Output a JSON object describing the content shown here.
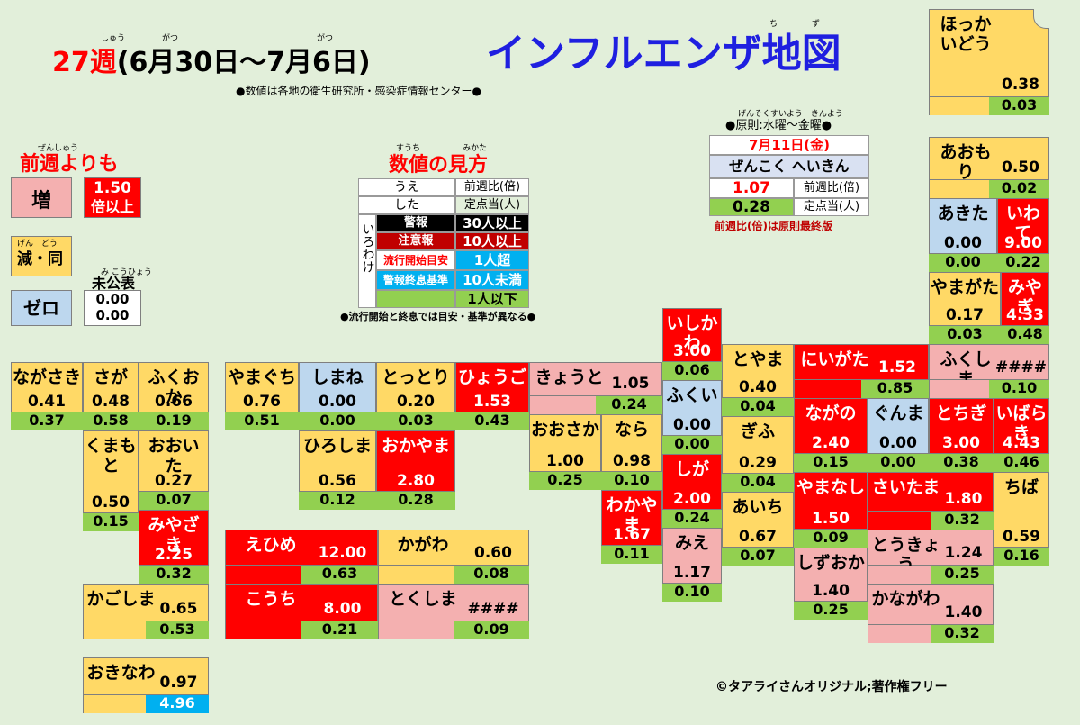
{
  "title": {
    "week": "27週",
    "range": "(6月30日〜7月6日)",
    "map_title": "インフルエンザ地図",
    "source": "●数値は各地の衛生研究所・感染症情報センター●",
    "furigana": {
      "shuu": "しゅう",
      "gatsu1": "がつ",
      "gatsu2": "がつ",
      "chizu1": "ち",
      "chizu2": "ず"
    }
  },
  "legend_prev": {
    "heading": "前週よりも",
    "furigana": "ぜんしゅう",
    "inc": "増",
    "inc_furi": "ぞう",
    "inc_value": "1.50",
    "inc_note": "倍以上",
    "same": "減・同",
    "same_furi": "げん　どう",
    "zero": "ゼロ",
    "unpub": "未公表",
    "unpub_furi": "み こうひょう",
    "unpub_v1": "0.00",
    "unpub_v2": "0.00"
  },
  "legend_read": {
    "heading": "数値の見方",
    "furi1": "すうち",
    "furi2": "みかた",
    "ue": "うえ",
    "ue_desc": "前週比(倍)",
    "shita": "した",
    "shita_desc": "定点当(人)",
    "iro": "いろわけ",
    "levels": [
      {
        "name": "警報",
        "desc": "30人以上"
      },
      {
        "name": "注意報",
        "desc": "10人以上"
      },
      {
        "name": "流行開始目安",
        "desc": "1人超"
      },
      {
        "name": "警報終息基準",
        "desc": "10人未満"
      },
      {
        "name": "",
        "desc": "1人以下"
      }
    ],
    "note": "●流行開始と終息では目安・基準が異なる●"
  },
  "national": {
    "rule": "●原則:水曜〜金曜●",
    "rule_furi": "げんそくすいよう　きんよう",
    "date": "7月11日(金)",
    "label": "ぜんこく へいきん",
    "ratio": "1.07",
    "ratio_desc": "前週比(倍)",
    "per": "0.28",
    "per_desc": "定点当(人)",
    "note": "前週比(倍)は原則最終版"
  },
  "credit": "©タアライさんオリジナル;著作権フリー",
  "colors": {
    "alert": "#ff0000",
    "caution": "#ff0000",
    "same": "#ffd966",
    "increase": "#f4b0b0",
    "zero": "#bdd7ee",
    "per_bar": "#92d050",
    "low_bar": "#00b0f0"
  },
  "prefectures": {
    "hokkaido": {
      "name": "ほっかいどう",
      "ratio": "0.38",
      "per": "0.03"
    },
    "aomori": {
      "name": "あおもり",
      "ratio": "0.50",
      "per": "0.02"
    },
    "akita": {
      "name": "あきた",
      "ratio": "0.00",
      "per": "0.00"
    },
    "iwate": {
      "name": "いわて",
      "ratio": "9.00",
      "per": "0.22"
    },
    "yamagata": {
      "name": "やまがた",
      "ratio": "0.17",
      "per": "0.03"
    },
    "miyagi": {
      "name": "みやぎ",
      "ratio": "4.33",
      "per": "0.48"
    },
    "fukushima": {
      "name": "ふくしま",
      "ratio": "####",
      "per": "0.10"
    },
    "niigata": {
      "name": "にいがた",
      "ratio": "1.52",
      "per": "0.85"
    },
    "ibaraki": {
      "name": "いばらき",
      "ratio": "4.43",
      "per": "0.46"
    },
    "tochigi": {
      "name": "とちぎ",
      "ratio": "3.00",
      "per": "0.38"
    },
    "gunma": {
      "name": "ぐんま",
      "ratio": "0.00",
      "per": "0.00"
    },
    "nagano": {
      "name": "ながの",
      "ratio": "2.40",
      "per": "0.15"
    },
    "toyama": {
      "name": "とやま",
      "ratio": "0.40",
      "per": "0.04"
    },
    "ishikawa": {
      "name": "いしかわ",
      "ratio": "3.00",
      "per": "0.06"
    },
    "fukui": {
      "name": "ふくい",
      "ratio": "0.00",
      "per": "0.00"
    },
    "gifu": {
      "name": "ぎふ",
      "ratio": "0.29",
      "per": "0.04"
    },
    "saitama": {
      "name": "さいたま",
      "ratio": "1.80",
      "per": "0.32"
    },
    "chiba": {
      "name": "ちば",
      "ratio": "0.59",
      "per": "0.16"
    },
    "yamanashi": {
      "name": "やまなし",
      "ratio": "1.50",
      "per": "0.09"
    },
    "tokyo": {
      "name": "とうきょう",
      "ratio": "1.24",
      "per": "0.25"
    },
    "shizuoka": {
      "name": "しずおか",
      "ratio": "1.40",
      "per": "0.25"
    },
    "kanagawa": {
      "name": "かながわ",
      "ratio": "1.40",
      "per": "0.32"
    },
    "aichi": {
      "name": "あいち",
      "ratio": "0.67",
      "per": "0.07"
    },
    "shiga": {
      "name": "しが",
      "ratio": "2.00",
      "per": "0.24"
    },
    "mie": {
      "name": "みえ",
      "ratio": "1.17",
      "per": "0.10"
    },
    "kyoto": {
      "name": "きょうと",
      "ratio": "1.05",
      "per": "0.24"
    },
    "nara": {
      "name": "なら",
      "ratio": "0.98",
      "per": "0.10"
    },
    "osaka": {
      "name": "おおさか",
      "ratio": "1.00",
      "per": "0.25"
    },
    "wakayama": {
      "name": "わかやま",
      "ratio": "1.67",
      "per": "0.11"
    },
    "hyogo": {
      "name": "ひょうご",
      "ratio": "1.53",
      "per": "0.43"
    },
    "tottori": {
      "name": "とっとり",
      "ratio": "0.20",
      "per": "0.03"
    },
    "shimane": {
      "name": "しまね",
      "ratio": "0.00",
      "per": "0.00"
    },
    "okayama": {
      "name": "おかやま",
      "ratio": "2.80",
      "per": "0.28"
    },
    "hiroshima": {
      "name": "ひろしま",
      "ratio": "0.56",
      "per": "0.12"
    },
    "yamaguchi": {
      "name": "やまぐち",
      "ratio": "0.76",
      "per": "0.51"
    },
    "kagawa": {
      "name": "かがわ",
      "ratio": "0.60",
      "per": "0.08"
    },
    "ehime": {
      "name": "えひめ",
      "ratio": "12.00",
      "per": "0.63"
    },
    "kochi": {
      "name": "こうち",
      "ratio": "8.00",
      "per": "0.21"
    },
    "tokushima": {
      "name": "とくしま",
      "ratio": "####",
      "per": "0.09"
    },
    "fukuoka": {
      "name": "ふくおか",
      "ratio": "0.66",
      "per": "0.19"
    },
    "saga": {
      "name": "さが",
      "ratio": "0.48",
      "per": "0.58"
    },
    "nagasaki": {
      "name": "ながさき",
      "ratio": "0.41",
      "per": "0.37"
    },
    "kumamoto": {
      "name": "くまもと",
      "ratio": "0.50",
      "per": "0.15"
    },
    "oita": {
      "name": "おおいた",
      "ratio": "0.27",
      "per": "0.07"
    },
    "miyazaki": {
      "name": "みやざき",
      "ratio": "2.25",
      "per": "0.32"
    },
    "kagoshima": {
      "name": "かごしま",
      "ratio": "0.65",
      "per": "0.53"
    },
    "okinawa": {
      "name": "おきなわ",
      "ratio": "0.97",
      "per": "4.96"
    }
  }
}
